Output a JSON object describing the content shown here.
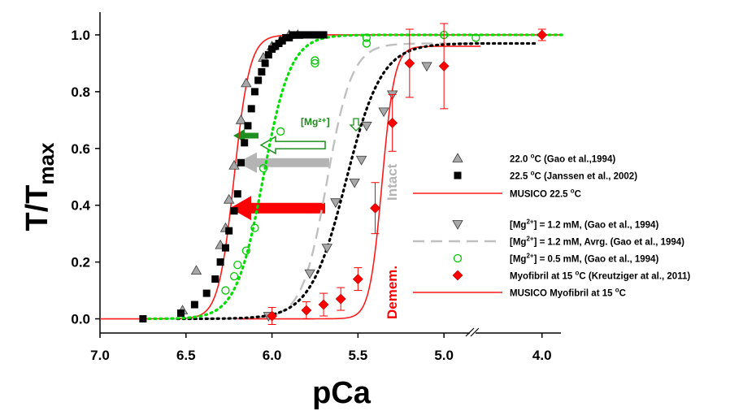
{
  "chart_data": {
    "type": "scatter",
    "xlabel": "pCa",
    "ylabel_main": "T/T",
    "ylabel_sub": "max",
    "x_axis": {
      "reversed": true,
      "break_between": [
        5.0,
        4.0
      ],
      "ticks": [
        "7.0",
        "6.5",
        "6.0",
        "5.5",
        "5.0",
        "4.0"
      ],
      "range": [
        7.0,
        3.8
      ]
    },
    "y_axis": {
      "range": [
        -0.05,
        1.08
      ],
      "ticks": [
        "0.0",
        "0.2",
        "0.4",
        "0.6",
        "0.8",
        "1.0"
      ]
    },
    "grid": false,
    "legend_placement": "center-right",
    "group_labels": {
      "intact": "Intact",
      "demem": "Demem."
    },
    "annotation_mg": "[Mg²⁺]",
    "series": [
      {
        "key": "gao22",
        "name": "22.0 °C (Gao et al.,1994)",
        "legend_parts": [
          "22.0 ",
          "o",
          "C (Gao et al.,1994)"
        ],
        "marker": "triangle-up",
        "color": "#7f7f7f",
        "x": [
          6.52,
          6.44,
          6.3,
          6.27,
          6.25,
          6.22,
          6.18,
          6.15,
          6.05,
          6.0,
          5.95,
          5.9,
          5.85
        ],
        "y": [
          0.03,
          0.17,
          0.26,
          0.32,
          0.42,
          0.54,
          0.7,
          0.83,
          0.92,
          0.96,
          0.98,
          1.0,
          1.0
        ]
      },
      {
        "key": "janssen",
        "name": "22.5 °C (Janssen et al., 2002)",
        "legend_parts": [
          "22.5 ",
          "o",
          "C (Janssen et al., 2002)"
        ],
        "marker": "square",
        "color": "#000000",
        "x": [
          6.75,
          6.53,
          6.45,
          6.38,
          6.33,
          6.3,
          6.27,
          6.25,
          6.22,
          6.2,
          6.18,
          6.16,
          6.14,
          6.12,
          6.1,
          6.08,
          6.06,
          6.04,
          6.02,
          6.0,
          5.98,
          5.96,
          5.94,
          5.92,
          5.9,
          5.88,
          5.86,
          5.84,
          5.82,
          5.8,
          5.78,
          5.76,
          5.74,
          5.72,
          5.7
        ],
        "y": [
          0.0,
          0.02,
          0.05,
          0.09,
          0.14,
          0.2,
          0.25,
          0.31,
          0.38,
          0.44,
          0.55,
          0.62,
          0.68,
          0.74,
          0.8,
          0.84,
          0.87,
          0.9,
          0.93,
          0.95,
          0.96,
          0.97,
          0.98,
          0.99,
          0.99,
          1.0,
          1.0,
          1.0,
          1.0,
          1.0,
          1.0,
          1.0,
          1.0,
          1.0,
          1.0
        ]
      },
      {
        "key": "musico225",
        "name": "MUSICO 22.5 °C",
        "legend_parts": [
          "MUSICO 22.5 ",
          "o",
          "C"
        ],
        "marker": "line",
        "color": "#ff1a1a",
        "dash": "none",
        "curve": {
          "x50": 6.22,
          "n": 9.5,
          "max": 1.0,
          "from": 7.0,
          "to": 3.8
        }
      },
      {
        "key": "gao12",
        "name": "[Mg2+] = 1.2 mM, (Gao et al., 1994)",
        "legend_parts": [
          "[Mg",
          "2+",
          "] = 1.2 mM, (Gao et al., 1994)"
        ],
        "marker": "triangle-down",
        "color": "#7f7f7f",
        "x": [
          6.02,
          5.78,
          5.68,
          5.63,
          5.52,
          5.48,
          5.45,
          5.35,
          5.3,
          5.1
        ],
        "y": [
          0.01,
          0.16,
          0.25,
          0.41,
          0.48,
          0.56,
          0.68,
          0.73,
          0.79,
          0.89
        ]
      },
      {
        "key": "gao12avg",
        "name": "[Mg2+] = 1.2 mM, Avrg. (Gao et al., 1994)",
        "legend_parts": [
          "[Mg",
          "2+",
          "] = 1.2 mM, Avrg. (Gao et al., 1994)"
        ],
        "marker": "line",
        "color": "#c0c0c0",
        "dash": "14 8",
        "curve": {
          "x50": 5.68,
          "n": 6.0,
          "max": 0.97,
          "from": 6.6,
          "to": 4.65
        }
      },
      {
        "key": "gao05",
        "name": "[Mg2+] = 0.5 mM, (Gao et al., 1994)",
        "legend_parts": [
          "[Mg",
          "2+",
          "] = 0.5 mM, (Gao et al., 1994)"
        ],
        "marker": "circle-open",
        "color": "#00c800",
        "x": [
          6.27,
          6.22,
          6.2,
          6.15,
          6.1,
          6.05,
          5.95,
          5.75,
          5.75,
          5.45,
          5.45,
          5.0,
          4.7
        ],
        "y": [
          0.1,
          0.15,
          0.19,
          0.24,
          0.32,
          0.53,
          0.66,
          0.9,
          0.91,
          0.97,
          0.99,
          1.0,
          0.99
        ]
      },
      {
        "key": "kreutz",
        "name": "Myofibril at 15 °C (Kreutziger at al., 2011)",
        "legend_parts": [
          "Myofibril at 15 ",
          "o",
          "C (Kreutziger at al., 2011)"
        ],
        "marker": "diamond",
        "color": "#ff0000",
        "x": [
          6.0,
          5.8,
          5.7,
          5.6,
          5.5,
          5.4,
          5.3,
          5.2,
          5.0,
          4.0
        ],
        "y": [
          0.01,
          0.03,
          0.05,
          0.07,
          0.14,
          0.39,
          0.69,
          0.9,
          0.89,
          1.0
        ],
        "err": [
          0.03,
          0.03,
          0.04,
          0.04,
          0.04,
          0.09,
          0.1,
          0.12,
          0.15,
          0.02
        ]
      },
      {
        "key": "musico15",
        "name": "MUSICO Myofibril at 15 °C",
        "legend_parts": [
          "MUSICO Myofibril at 15 ",
          "o",
          "C"
        ],
        "marker": "line",
        "color": "#ff1a1a",
        "dash": "none",
        "curve": {
          "x50": 5.36,
          "n": 12.0,
          "max": 0.96,
          "from": 6.2,
          "to": 4.65
        }
      },
      {
        "key": "black_fit",
        "name": "",
        "marker": "line",
        "color": "#000000",
        "dash": "2 5",
        "curve": {
          "x50": 5.57,
          "n": 4.2,
          "max": 0.97,
          "from": 6.55,
          "to": 4.05
        }
      },
      {
        "key": "green_fit",
        "name": "",
        "marker": "line",
        "color": "#00e000",
        "dash": "2 5",
        "curve": {
          "x50": 6.05,
          "n": 5.5,
          "max": 1.0,
          "from": 6.75,
          "to": 3.75
        }
      }
    ]
  }
}
